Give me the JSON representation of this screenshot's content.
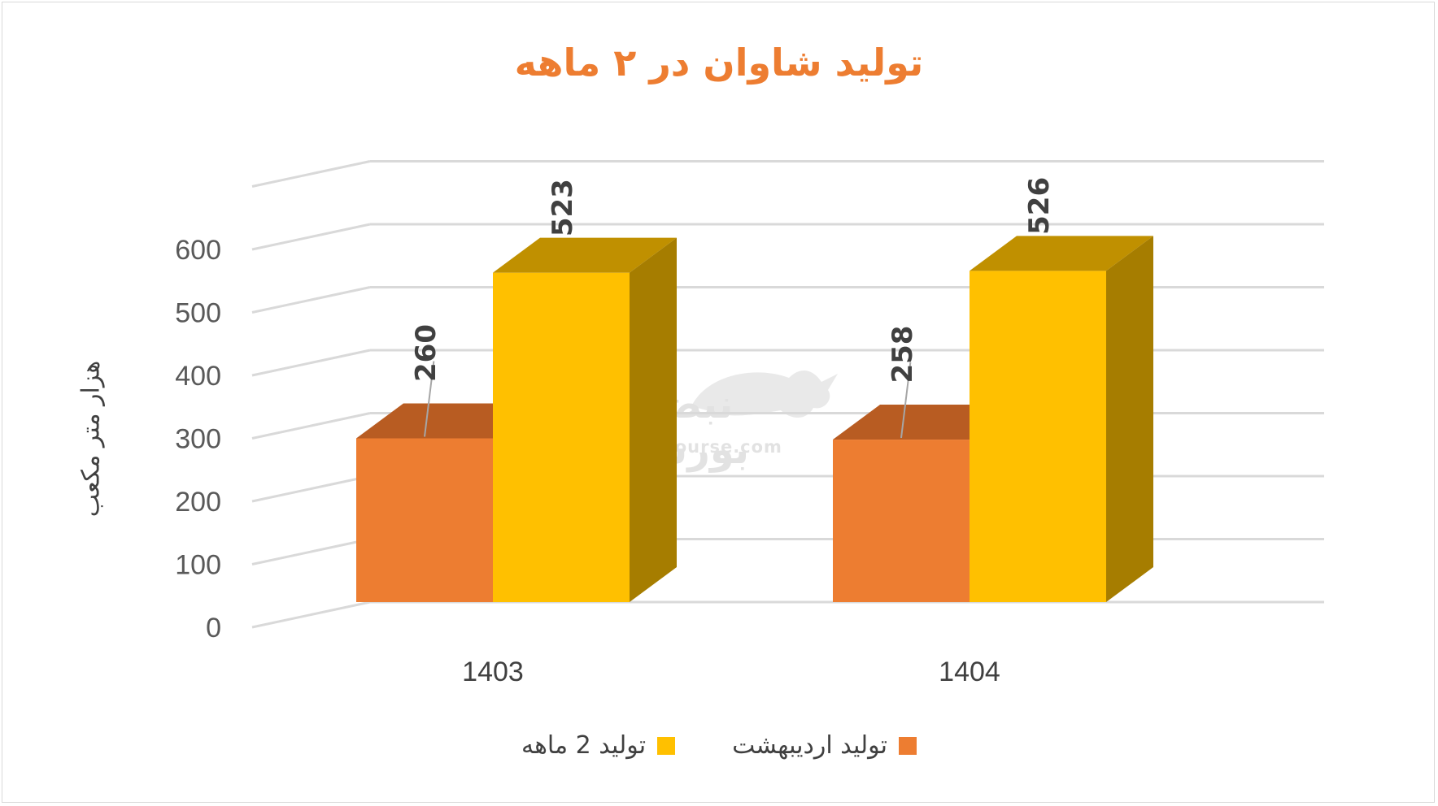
{
  "chart_data": {
    "type": "bar",
    "title": "تولید شاوان در ۲ ماهه",
    "ylabel": "هزار متر مکعب",
    "xlabel": "",
    "categories": [
      "1403",
      "1404"
    ],
    "series": [
      {
        "name": "تولید اردیبهشت",
        "values": [
          260,
          258
        ],
        "color": "#ed7d31"
      },
      {
        "name": "تولید 2  ماهه",
        "values": [
          523,
          526
        ],
        "color": "#ffc000"
      }
    ],
    "ylim": [
      0,
      600
    ],
    "yticks": [
      "0",
      "100",
      "200",
      "300",
      "400",
      "500",
      "600"
    ],
    "grid": true,
    "legend_position": "bottom",
    "data_labels": [
      [
        "260",
        "258"
      ],
      [
        "523",
        "526"
      ]
    ]
  },
  "watermark": {
    "logo_text": "نبض بورس",
    "site": "nabzebourse.com"
  }
}
